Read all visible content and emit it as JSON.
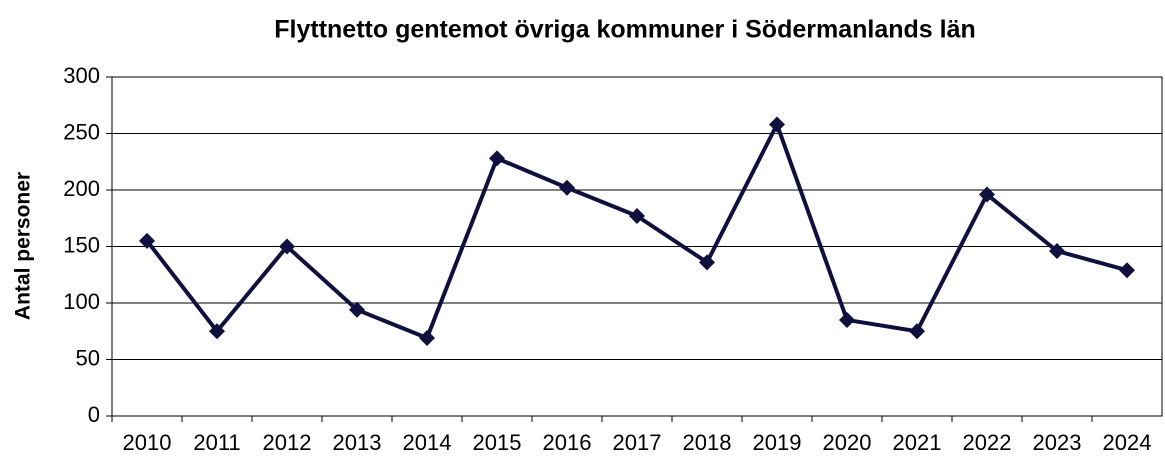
{
  "chart_data": {
    "type": "line",
    "title": "Flyttnetto gentemot övriga kommuner i Södermanlands län",
    "ylabel": "Antal personer",
    "categories": [
      "2010",
      "2011",
      "2012",
      "2013",
      "2014",
      "2015",
      "2016",
      "2017",
      "2018",
      "2019",
      "2020",
      "2021",
      "2022",
      "2023",
      "2024"
    ],
    "values": [
      155,
      75,
      150,
      94,
      69,
      228,
      202,
      177,
      136,
      258,
      85,
      75,
      196,
      146,
      129
    ],
    "color": "#10103f",
    "ylim": [
      0,
      300
    ],
    "yticks": [
      0,
      50,
      100,
      150,
      200,
      250,
      300
    ],
    "grid": true
  }
}
